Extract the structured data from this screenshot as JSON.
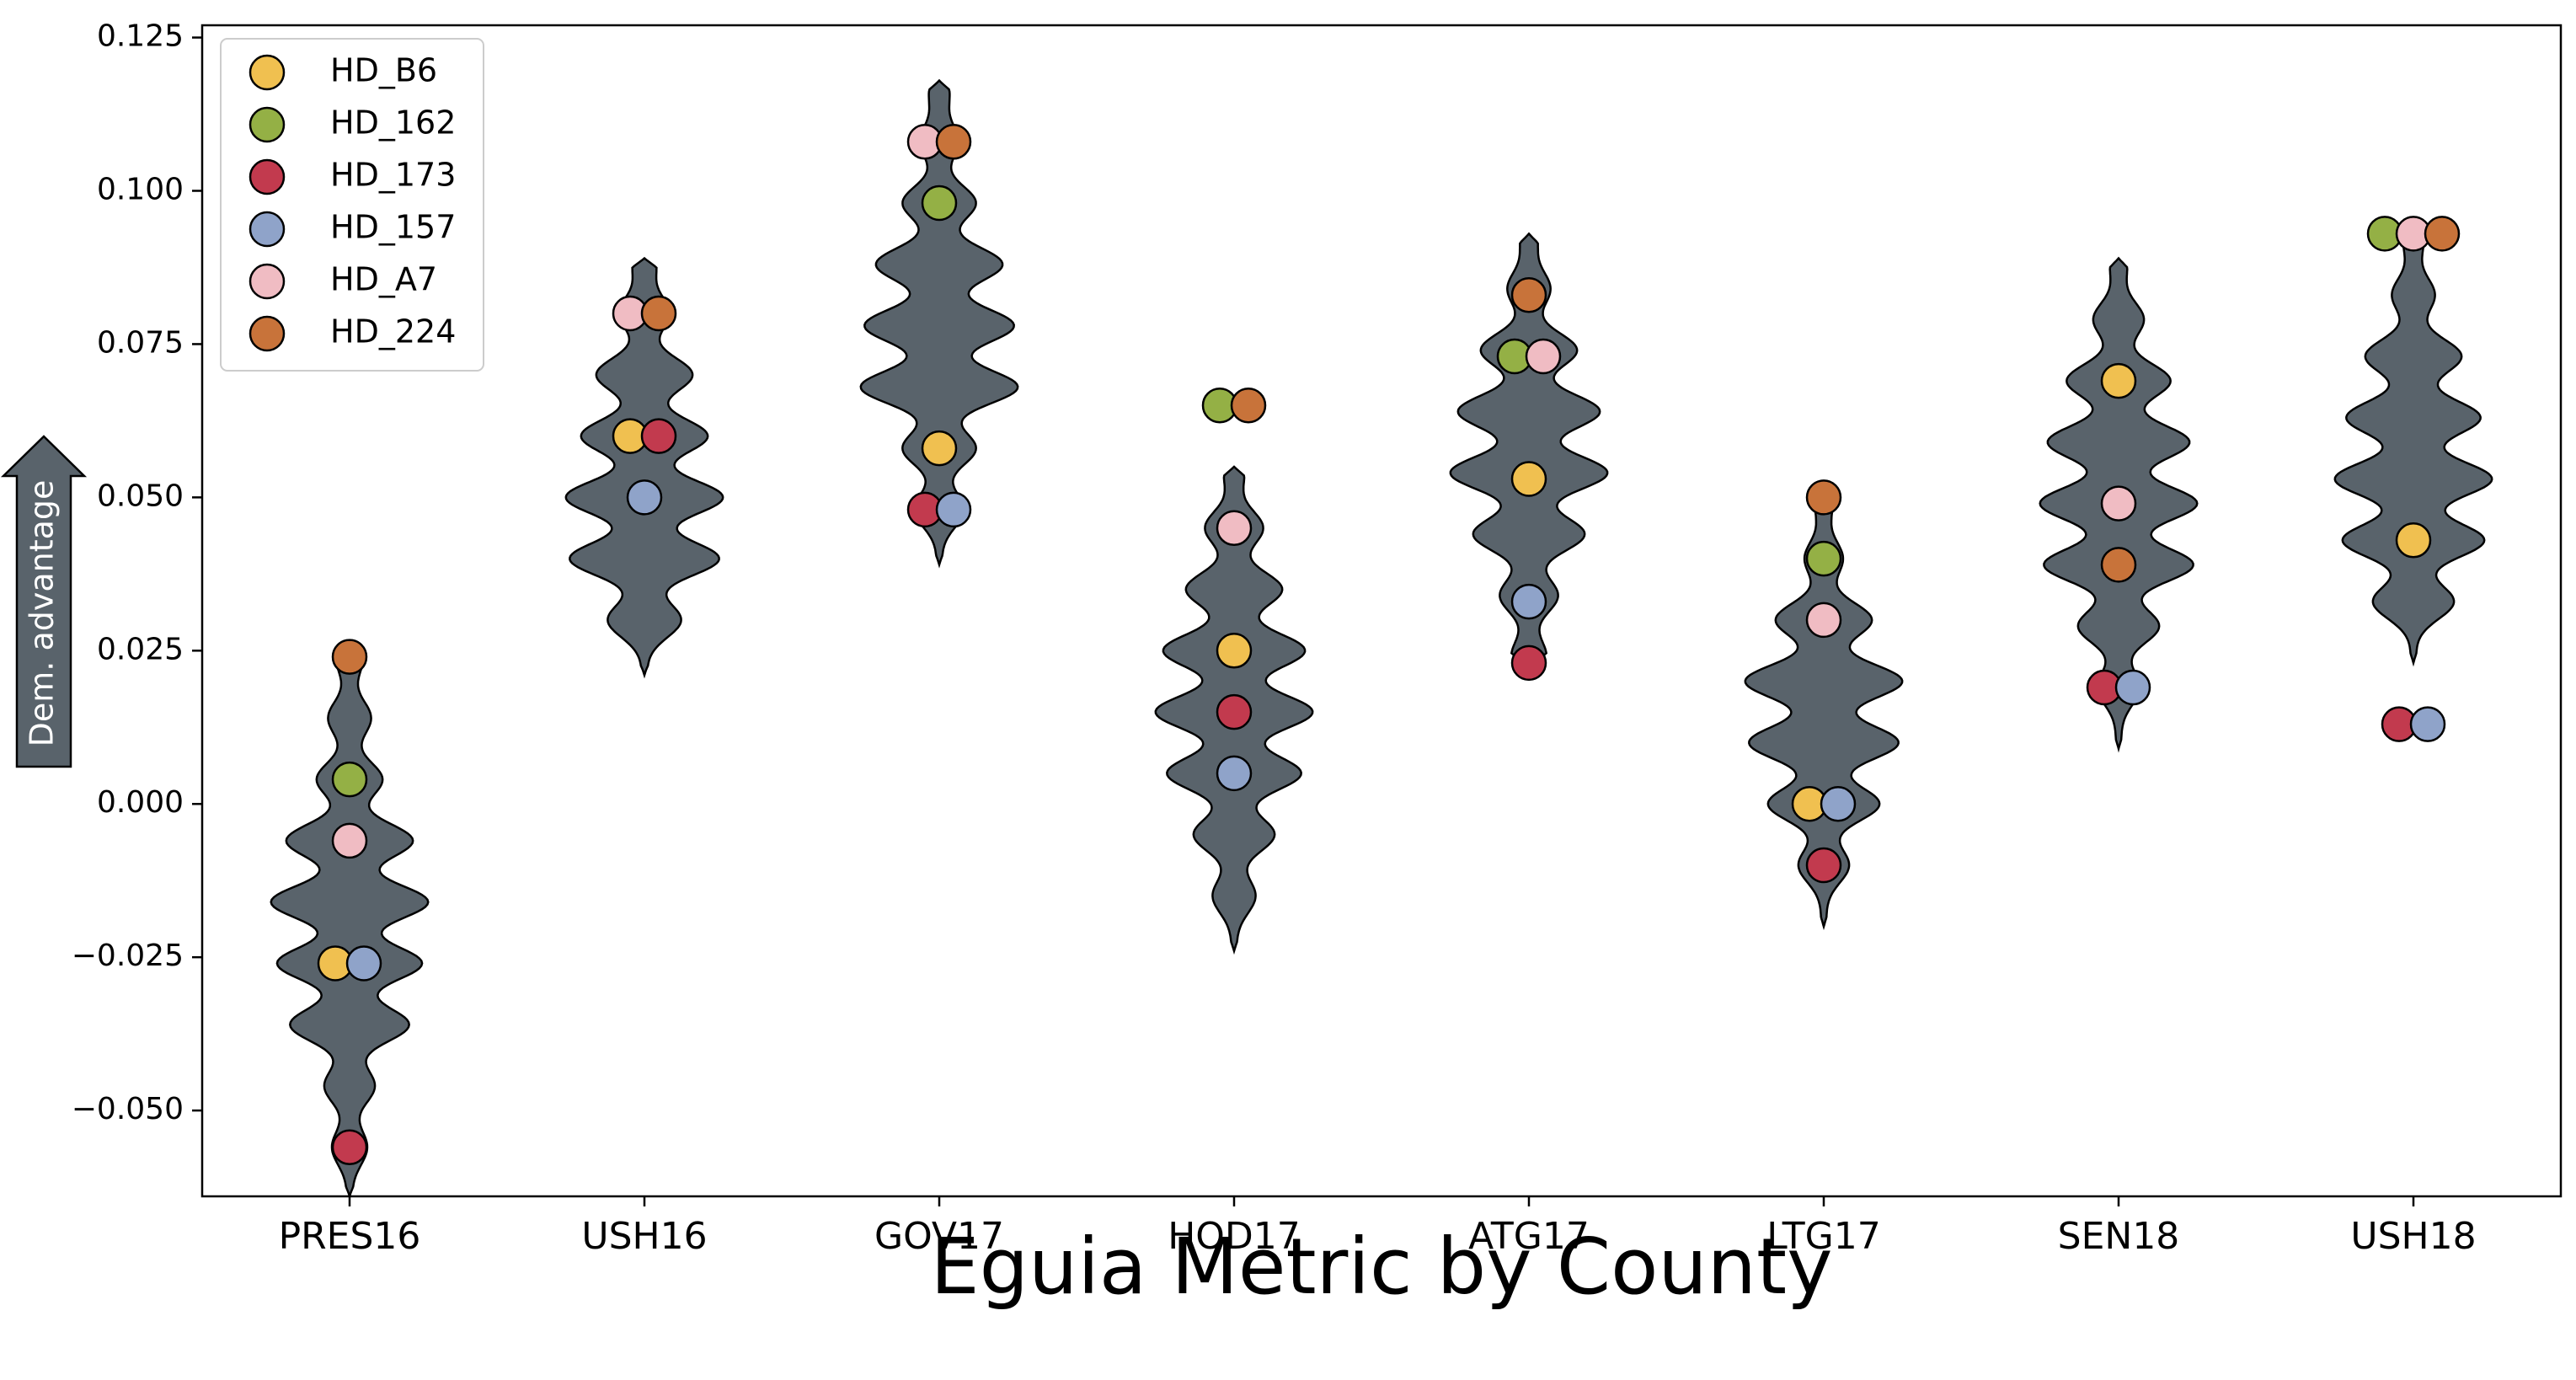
{
  "chart_data": {
    "type": "violin",
    "xlabel": "Eguia Metric by County",
    "ylabel_arrow": "Dem. advantage",
    "ylim": [
      -0.064,
      0.127
    ],
    "yticks": [
      -0.05,
      -0.025,
      0.0,
      0.025,
      0.05,
      0.075,
      0.1,
      0.125
    ],
    "ytick_labels": [
      "−0.050",
      "−0.025",
      "0.000",
      "0.025",
      "0.050",
      "0.075",
      "0.100",
      "0.125"
    ],
    "categories": [
      "PRES16",
      "USH16",
      "GOV17",
      "HOD17",
      "ATG17",
      "LTG17",
      "SEN18",
      "USH18"
    ],
    "legend_position": "top-left",
    "violin_color": "#59636b",
    "violins": [
      {
        "category": "PRES16",
        "min": -0.064,
        "max": 0.024,
        "peaks": [
          [
            -0.056,
            0.2
          ],
          [
            -0.046,
            0.3
          ],
          [
            -0.036,
            0.75
          ],
          [
            -0.026,
            0.92
          ],
          [
            -0.016,
            1.0
          ],
          [
            -0.006,
            0.8
          ],
          [
            0.004,
            0.4
          ],
          [
            0.014,
            0.25
          ],
          [
            0.024,
            0.15
          ]
        ]
      },
      {
        "category": "USH16",
        "min": 0.021,
        "max": 0.089,
        "peaks": [
          [
            0.03,
            0.45
          ],
          [
            0.04,
            0.95
          ],
          [
            0.05,
            1.0
          ],
          [
            0.06,
            0.8
          ],
          [
            0.07,
            0.6
          ],
          [
            0.08,
            0.3
          ],
          [
            0.088,
            0.12
          ]
        ]
      },
      {
        "category": "GOV17",
        "min": 0.039,
        "max": 0.118,
        "peaks": [
          [
            0.048,
            0.3
          ],
          [
            0.058,
            0.45
          ],
          [
            0.068,
            1.0
          ],
          [
            0.078,
            0.95
          ],
          [
            0.088,
            0.8
          ],
          [
            0.098,
            0.45
          ],
          [
            0.108,
            0.22
          ],
          [
            0.116,
            0.1
          ]
        ]
      },
      {
        "category": "HOD17",
        "min": -0.024,
        "max": 0.055,
        "peaks": [
          [
            -0.015,
            0.25
          ],
          [
            -0.005,
            0.5
          ],
          [
            0.005,
            0.85
          ],
          [
            0.015,
            1.0
          ],
          [
            0.025,
            0.9
          ],
          [
            0.035,
            0.6
          ],
          [
            0.045,
            0.35
          ],
          [
            0.054,
            0.1
          ]
        ]
      },
      {
        "category": "ATG17",
        "min": 0.023,
        "max": 0.093,
        "peaks": [
          [
            0.024,
            0.2
          ],
          [
            0.034,
            0.35
          ],
          [
            0.044,
            0.7
          ],
          [
            0.054,
            1.0
          ],
          [
            0.064,
            0.9
          ],
          [
            0.074,
            0.6
          ],
          [
            0.084,
            0.25
          ],
          [
            0.092,
            0.08
          ]
        ]
      },
      {
        "category": "LTG17",
        "min": -0.02,
        "max": 0.05,
        "peaks": [
          [
            -0.01,
            0.3
          ],
          [
            0.0,
            0.7
          ],
          [
            0.01,
            0.95
          ],
          [
            0.02,
            1.0
          ],
          [
            0.03,
            0.6
          ],
          [
            0.04,
            0.22
          ],
          [
            0.049,
            0.08
          ]
        ]
      },
      {
        "category": "SEN18",
        "min": 0.009,
        "max": 0.089,
        "peaks": [
          [
            0.019,
            0.25
          ],
          [
            0.029,
            0.5
          ],
          [
            0.039,
            0.95
          ],
          [
            0.049,
            1.0
          ],
          [
            0.059,
            0.9
          ],
          [
            0.069,
            0.65
          ],
          [
            0.079,
            0.3
          ],
          [
            0.088,
            0.08
          ]
        ]
      },
      {
        "category": "USH18",
        "min": 0.023,
        "max": 0.093,
        "peaks": [
          [
            0.033,
            0.5
          ],
          [
            0.043,
            0.9
          ],
          [
            0.053,
            1.0
          ],
          [
            0.063,
            0.85
          ],
          [
            0.073,
            0.6
          ],
          [
            0.083,
            0.25
          ],
          [
            0.092,
            0.1
          ]
        ]
      }
    ],
    "series": [
      {
        "name": "HD_B6",
        "color": "#f0c050",
        "values": [
          -0.026,
          0.06,
          0.058,
          0.025,
          0.053,
          0.0,
          0.069,
          0.043
        ]
      },
      {
        "name": "HD_162",
        "color": "#94b045",
        "values": [
          0.004,
          null,
          0.098,
          0.065,
          0.073,
          0.04,
          null,
          0.093
        ]
      },
      {
        "name": "HD_173",
        "color": "#c23a4e",
        "values": [
          -0.056,
          0.06,
          0.048,
          0.015,
          0.023,
          -0.01,
          0.019,
          0.013
        ]
      },
      {
        "name": "HD_157",
        "color": "#8fa3c9",
        "values": [
          -0.026,
          0.05,
          0.048,
          0.005,
          0.033,
          0.0,
          0.019,
          0.013
        ]
      },
      {
        "name": "HD_A7",
        "color": "#f0bcc3",
        "values": [
          -0.006,
          0.08,
          0.108,
          0.045,
          0.073,
          0.03,
          0.049,
          0.093
        ]
      },
      {
        "name": "HD_224",
        "color": "#c8733a",
        "values": [
          0.024,
          0.08,
          0.108,
          0.065,
          0.083,
          0.05,
          0.039,
          0.093
        ]
      }
    ]
  }
}
